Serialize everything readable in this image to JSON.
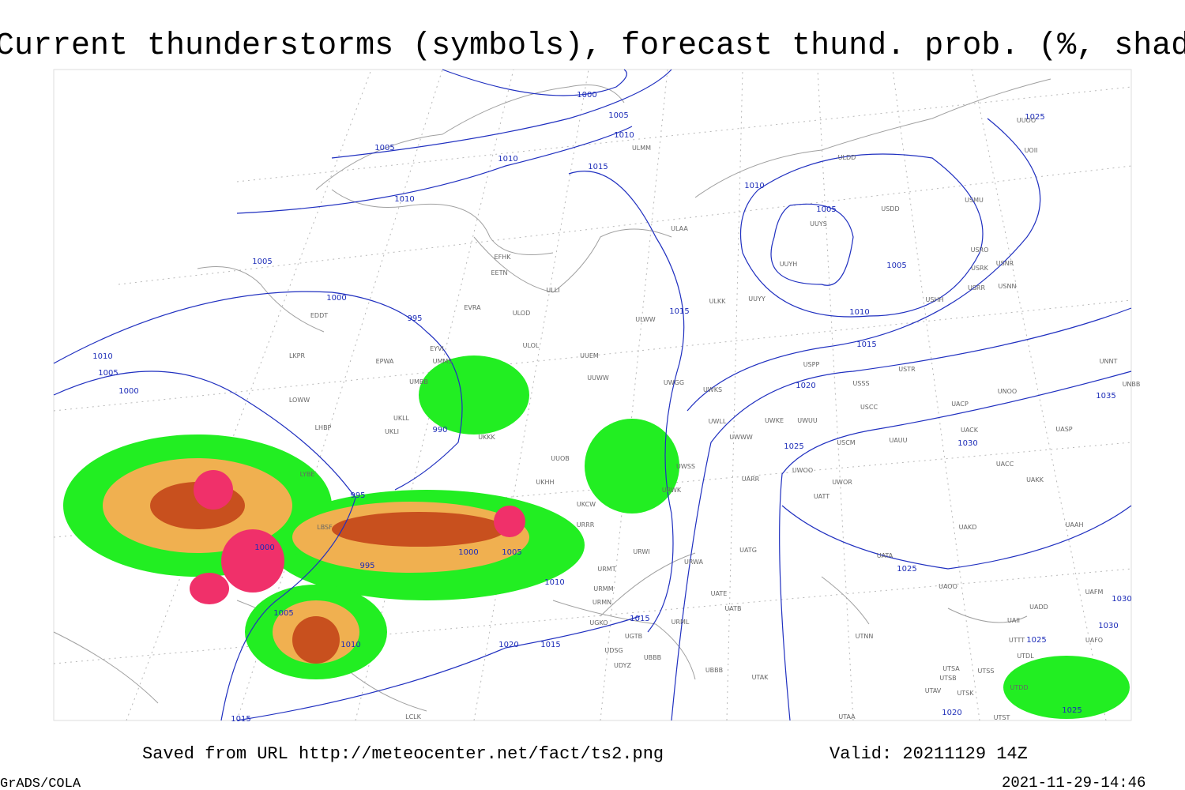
{
  "title": "Current thunderstorms (symbols), forecast thund. prob. (%, shaded)",
  "footer": {
    "source": "Saved from URL http://meteocenter.net/fact/ts2.png",
    "valid": "Valid: 20211129 14Z",
    "software": "GrADS/COLA",
    "timestamp": "2021-11-29-14:46"
  },
  "isobar_labels": [
    1000,
    1005,
    1010,
    1005,
    1010,
    1015,
    1010,
    1010,
    1005,
    1005,
    1005,
    1000,
    995,
    1015,
    1010,
    1015,
    1010,
    1005,
    1000,
    1020,
    990,
    1025,
    1030,
    1035,
    995,
    1000,
    1000,
    1005,
    995,
    1005,
    1010,
    1025,
    1015,
    1010,
    1020,
    1015,
    1015,
    1020,
    1025,
    1030,
    1030,
    1025,
    1025
  ],
  "stations": [
    "ULDD",
    "UUYS",
    "UUYH",
    "USDD",
    "USMU",
    "USRO",
    "USRK",
    "USNR",
    "USRR",
    "USNN",
    "USHH",
    "ULAA",
    "EFHK",
    "EETN",
    "ULLI",
    "ULKK",
    "UUYY",
    "ULWW",
    "EVRA",
    "ULOD",
    "EYVI",
    "ULOL",
    "UUEM",
    "UUWW",
    "UWGG",
    "UWKS",
    "USPP",
    "USSS",
    "USTR",
    "UNOO",
    "UNNT",
    "UNBB",
    "EPWA",
    "LKPR",
    "EDDT",
    "UMMS",
    "UMBB",
    "LOWW",
    "UKLL",
    "UKLI",
    "LHBP",
    "UKKK",
    "UWKE",
    "UWWW",
    "UWLL",
    "UWUU",
    "USCC",
    "UACP",
    "UACK",
    "UASP",
    "USCM",
    "UAUU",
    "UUOB",
    "UWSS",
    "UACC",
    "UAKK",
    "LYBE",
    "UKHH",
    "URWK",
    "UARR",
    "UWOO",
    "UWOR",
    "UATT",
    "UKCW",
    "UAKD",
    "URRR",
    "UAAH",
    "LBSF",
    "URWI",
    "UATG",
    "UATA",
    "URWA",
    "URMT",
    "URMM",
    "UATE",
    "URMN",
    "UAOO",
    "UAFM",
    "UATB",
    "UGKO",
    "UGTB",
    "URML",
    "UADD",
    "UAII",
    "UTTT",
    "UAFO",
    "UTNN",
    "UDSG",
    "UBBB",
    "UDYZ",
    "UBBB",
    "UTSA",
    "UTSB",
    "UTSS",
    "UTAK",
    "UTAV",
    "UTSK",
    "UTDD",
    "UTAA",
    "UTST",
    "UTDL",
    "UUOO",
    "UOII",
    "ULMM",
    "LCLK"
  ]
}
